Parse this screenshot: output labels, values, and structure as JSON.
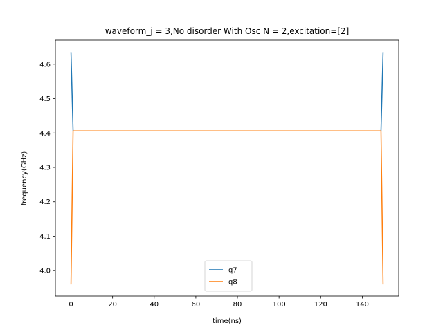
{
  "chart_data": {
    "type": "line",
    "title": "waveform_j = 3,No disorder  With Osc N =  2,excitation=[2]",
    "xlabel": "time(ns)",
    "ylabel": "frequency(GHz)",
    "xlim": [
      -7.5,
      157.5
    ],
    "ylim": [
      3.926,
      4.67
    ],
    "xticks": [
      0,
      20,
      40,
      60,
      80,
      100,
      120,
      140
    ],
    "xtick_labels": [
      "0",
      "20",
      "40",
      "60",
      "80",
      "100",
      "120",
      "140"
    ],
    "yticks": [
      4.0,
      4.1,
      4.2,
      4.3,
      4.4,
      4.5,
      4.6
    ],
    "ytick_labels": [
      "4.0",
      "4.1",
      "4.2",
      "4.3",
      "4.4",
      "4.5",
      "4.6"
    ],
    "grid": false,
    "legend_position": "lower center",
    "series": [
      {
        "name": "q7",
        "color": "#1f77b4",
        "x": [
          0,
          1,
          149,
          150
        ],
        "y": [
          4.635,
          4.406,
          4.406,
          4.635
        ]
      },
      {
        "name": "q8",
        "color": "#ff7f0e",
        "x": [
          0,
          1,
          149,
          150
        ],
        "y": [
          3.96,
          4.406,
          4.406,
          3.96
        ]
      }
    ]
  }
}
